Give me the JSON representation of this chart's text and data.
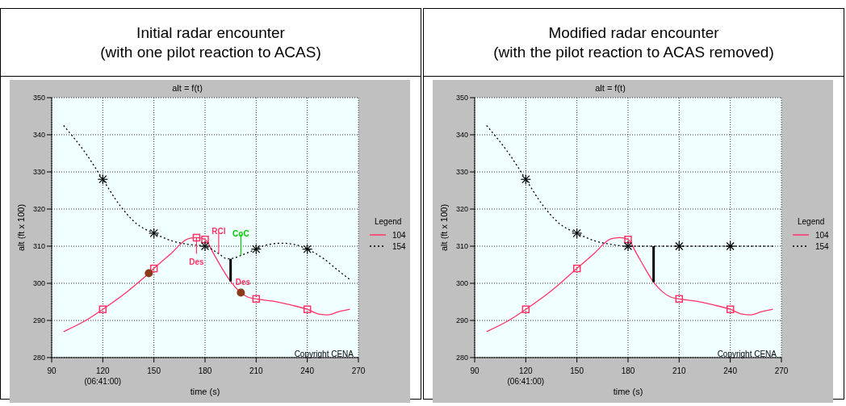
{
  "chart_data": [
    {
      "type": "line",
      "title": "Initial radar encounter\n(with one pilot reaction to ACAS)",
      "subtitle": "alt = f(t)",
      "xlabel": "time (s)",
      "ylabel": "alt (ft x 100)",
      "legend_title": "Legend",
      "legend": "right",
      "grid": true,
      "xlim": [
        90,
        270
      ],
      "xticks": [
        90,
        {
          "value": 120,
          "label": "120\n(06:41:00)"
        },
        150,
        180,
        210,
        240,
        270
      ],
      "ylim": [
        280,
        350
      ],
      "yticks": [
        280,
        290,
        300,
        310,
        320,
        330,
        340,
        350
      ],
      "series": [
        {
          "name": "104",
          "color": "#ff3366",
          "marker": "none",
          "line_style": "solid",
          "x": [
            97,
            110,
            120,
            135,
            147,
            150,
            160,
            170,
            175,
            180,
            185,
            190,
            195,
            201,
            205,
            210,
            220,
            230,
            240,
            247,
            252,
            258,
            265
          ],
          "values": [
            287,
            290,
            293,
            298,
            302.7,
            304,
            308,
            312,
            312.3,
            311.8,
            308,
            304,
            300.5,
            297.5,
            296.3,
            295.8,
            295.2,
            294.2,
            293,
            291.7,
            291.5,
            292.3,
            293
          ]
        },
        {
          "name": "154",
          "color": "#000000",
          "marker": "none",
          "line_style": "dotted",
          "x": [
            97,
            110,
            120,
            130,
            140,
            150,
            160,
            170,
            180,
            188,
            193,
            197,
            201,
            210,
            215,
            225,
            232,
            240,
            250,
            258,
            265
          ],
          "values": [
            342.5,
            335,
            328,
            321,
            316,
            313.5,
            311.5,
            310.5,
            310,
            308,
            306.6,
            306.8,
            307.5,
            309.2,
            310.2,
            310.8,
            310.5,
            309.2,
            306.5,
            303.5,
            301
          ]
        },
        {
          "type": "scatter",
          "color": "#ff3366",
          "marker": "square",
          "x": [
            120,
            150,
            175,
            180,
            210,
            240
          ],
          "values": [
            293,
            304,
            312.3,
            311.8,
            295.8,
            293
          ]
        },
        {
          "type": "scatter",
          "color": "#000000",
          "marker": "cross",
          "x": [
            120,
            150,
            180,
            210,
            240
          ],
          "values": [
            328,
            313.5,
            310,
            309.2,
            309.2
          ]
        },
        {
          "type": "scatter",
          "color": "#8b3a1a",
          "marker": "circle",
          "x": [
            147,
            201
          ],
          "values": [
            302.7,
            297.5
          ]
        },
        {
          "color": "#000000",
          "marker": "none",
          "line_style": "solid",
          "x": [
            195,
            195
          ],
          "values": [
            306.6,
            300.5
          ]
        }
      ],
      "annotations": [
        {
          "text": "Des",
          "x": 175,
          "y": 312.3
        },
        {
          "text": "RCl",
          "x": 188,
          "y": 308
        },
        {
          "text": "CoC",
          "x": 201,
          "y": 307.5
        },
        {
          "text": "Des",
          "x": 195,
          "y": 300.5
        },
        "Copyright CENA"
      ]
    },
    {
      "type": "line",
      "title": "Modified radar encounter\n(with the pilot reaction to ACAS removed)",
      "subtitle": "alt = f(t)",
      "xlabel": "time (s)",
      "ylabel": "alt (ft x 100)",
      "legend_title": "Legend",
      "legend": "right",
      "grid": true,
      "xlim": [
        90,
        270
      ],
      "xticks": [
        90,
        {
          "value": 120,
          "label": "120\n(06:41:00)"
        },
        150,
        180,
        210,
        240,
        270
      ],
      "ylim": [
        280,
        350
      ],
      "yticks": [
        280,
        290,
        300,
        310,
        320,
        330,
        340,
        350
      ],
      "series": [
        {
          "name": "104",
          "color": "#ff3366",
          "marker": "none",
          "line_style": "solid",
          "x": [
            97,
            110,
            120,
            135,
            150,
            160,
            170,
            175,
            180,
            185,
            190,
            195,
            200,
            205,
            210,
            220,
            230,
            240,
            247,
            252,
            258,
            265
          ],
          "values": [
            287,
            290,
            293,
            298,
            304,
            308,
            312,
            312.3,
            311.8,
            308,
            304,
            300.3,
            297.8,
            296.3,
            295.8,
            295.2,
            294.2,
            293,
            291.7,
            291.5,
            292.3,
            293
          ]
        },
        {
          "name": "154",
          "color": "#000000",
          "marker": "none",
          "line_style": "dotted",
          "x": [
            97,
            110,
            120,
            130,
            140,
            150,
            160,
            170,
            180,
            210,
            240,
            265
          ],
          "values": [
            342.5,
            335,
            328,
            321,
            316,
            313.5,
            311.5,
            310.5,
            310,
            310,
            310,
            310
          ]
        },
        {
          "type": "scatter",
          "color": "#ff3366",
          "marker": "square",
          "x": [
            120,
            150,
            180,
            210,
            240
          ],
          "values": [
            293,
            304,
            311.8,
            295.8,
            293
          ]
        },
        {
          "type": "scatter",
          "color": "#000000",
          "marker": "cross",
          "x": [
            120,
            150,
            180,
            210,
            240
          ],
          "values": [
            328,
            313.5,
            310,
            310,
            310
          ]
        },
        {
          "color": "#000000",
          "marker": "none",
          "line_style": "solid",
          "x": [
            195,
            195
          ],
          "values": [
            310,
            300.3
          ]
        }
      ],
      "annotations": [
        "Copyright CENA"
      ]
    }
  ]
}
